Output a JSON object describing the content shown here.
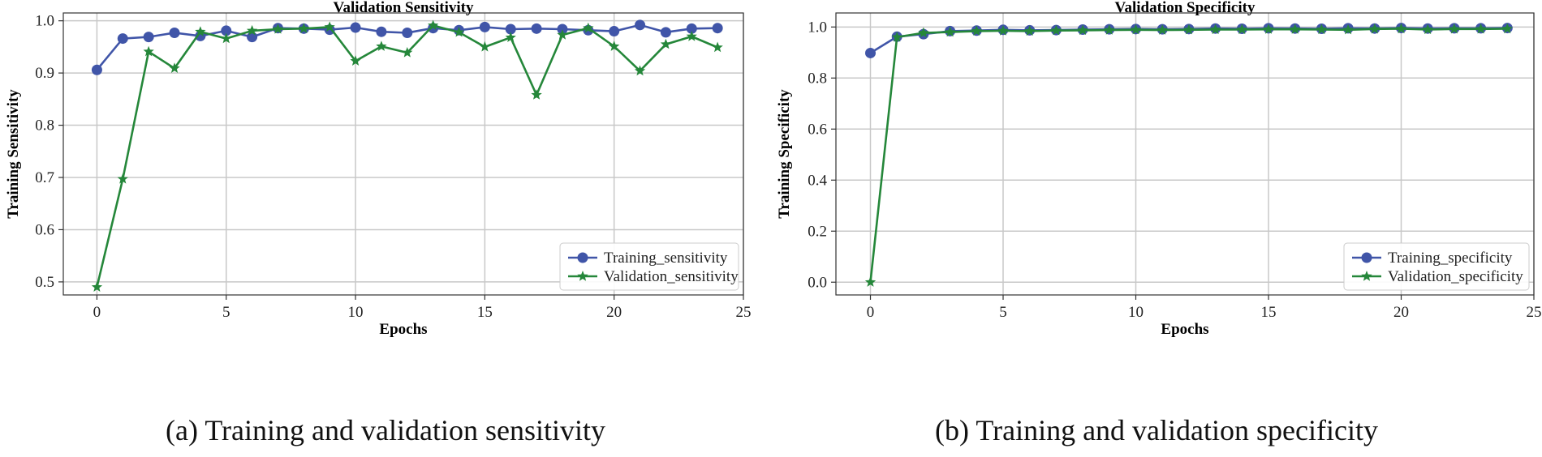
{
  "colors": {
    "training": "#4055a8",
    "validation": "#25873a",
    "grid": "#c8c8c8",
    "axis": "#333333"
  },
  "chart_data": [
    {
      "type": "line",
      "title": "Validation Sensitivity",
      "xlabel": "Epochs",
      "ylabel": "Training Sensitivity",
      "xlim": [
        -1.3,
        25.0
      ],
      "ylim": [
        0.475,
        1.015
      ],
      "xticks": [
        0,
        5,
        10,
        15,
        20,
        25
      ],
      "yticks": [
        0.5,
        0.6,
        0.7,
        0.8,
        0.9,
        1.0
      ],
      "ytick_labels": [
        "0.5",
        "0.6",
        "0.7",
        "0.8",
        "0.9",
        "1.0"
      ],
      "grid": true,
      "legend": "bottom-right",
      "x": [
        0,
        1,
        2,
        3,
        4,
        5,
        6,
        7,
        8,
        9,
        10,
        11,
        12,
        13,
        14,
        15,
        16,
        17,
        18,
        19,
        20,
        21,
        22,
        23,
        24
      ],
      "series": [
        {
          "name": "Training_sensitivity",
          "marker": "circle",
          "values": [
            0.906,
            0.966,
            0.969,
            0.977,
            0.971,
            0.981,
            0.969,
            0.986,
            0.985,
            0.983,
            0.987,
            0.979,
            0.977,
            0.986,
            0.982,
            0.988,
            0.984,
            0.985,
            0.984,
            0.982,
            0.98,
            0.992,
            0.978,
            0.985,
            0.986
          ]
        },
        {
          "name": "Validation_sensitivity",
          "marker": "star",
          "values": [
            0.49,
            0.697,
            0.941,
            0.909,
            0.979,
            0.966,
            0.981,
            0.984,
            0.985,
            0.988,
            0.923,
            0.951,
            0.939,
            0.991,
            0.978,
            0.95,
            0.968,
            0.858,
            0.973,
            0.986,
            0.951,
            0.904,
            0.955,
            0.97,
            0.949
          ]
        }
      ]
    },
    {
      "type": "line",
      "title": "Validation Specificity",
      "xlabel": "Epochs",
      "ylabel": "Training Specificity",
      "xlim": [
        -1.3,
        25.0
      ],
      "ylim": [
        -0.05,
        1.055
      ],
      "xticks": [
        0,
        5,
        10,
        15,
        20,
        25
      ],
      "yticks": [
        0.0,
        0.2,
        0.4,
        0.6,
        0.8,
        1.0
      ],
      "ytick_labels": [
        "0.0",
        "0.2",
        "0.4",
        "0.6",
        "0.8",
        "1.0"
      ],
      "grid": true,
      "legend": "bottom-right",
      "x": [
        0,
        1,
        2,
        3,
        4,
        5,
        6,
        7,
        8,
        9,
        10,
        11,
        12,
        13,
        14,
        15,
        16,
        17,
        18,
        19,
        20,
        21,
        22,
        23,
        24
      ],
      "series": [
        {
          "name": "Training_specificity",
          "marker": "circle",
          "values": [
            0.898,
            0.962,
            0.972,
            0.984,
            0.986,
            0.989,
            0.987,
            0.988,
            0.99,
            0.991,
            0.992,
            0.991,
            0.992,
            0.994,
            0.993,
            0.995,
            0.994,
            0.993,
            0.995,
            0.994,
            0.996,
            0.994,
            0.995,
            0.995,
            0.996
          ]
        },
        {
          "name": "Validation_specificity",
          "marker": "star",
          "values": [
            0.0,
            0.96,
            0.977,
            0.98,
            0.984,
            0.985,
            0.984,
            0.986,
            0.987,
            0.988,
            0.989,
            0.988,
            0.989,
            0.99,
            0.99,
            0.991,
            0.991,
            0.99,
            0.989,
            0.992,
            0.993,
            0.99,
            0.992,
            0.992,
            0.993
          ]
        }
      ]
    }
  ],
  "captions": {
    "a": "(a) Training and validation sensitivity",
    "b": "(b) Training and validation specificity"
  }
}
